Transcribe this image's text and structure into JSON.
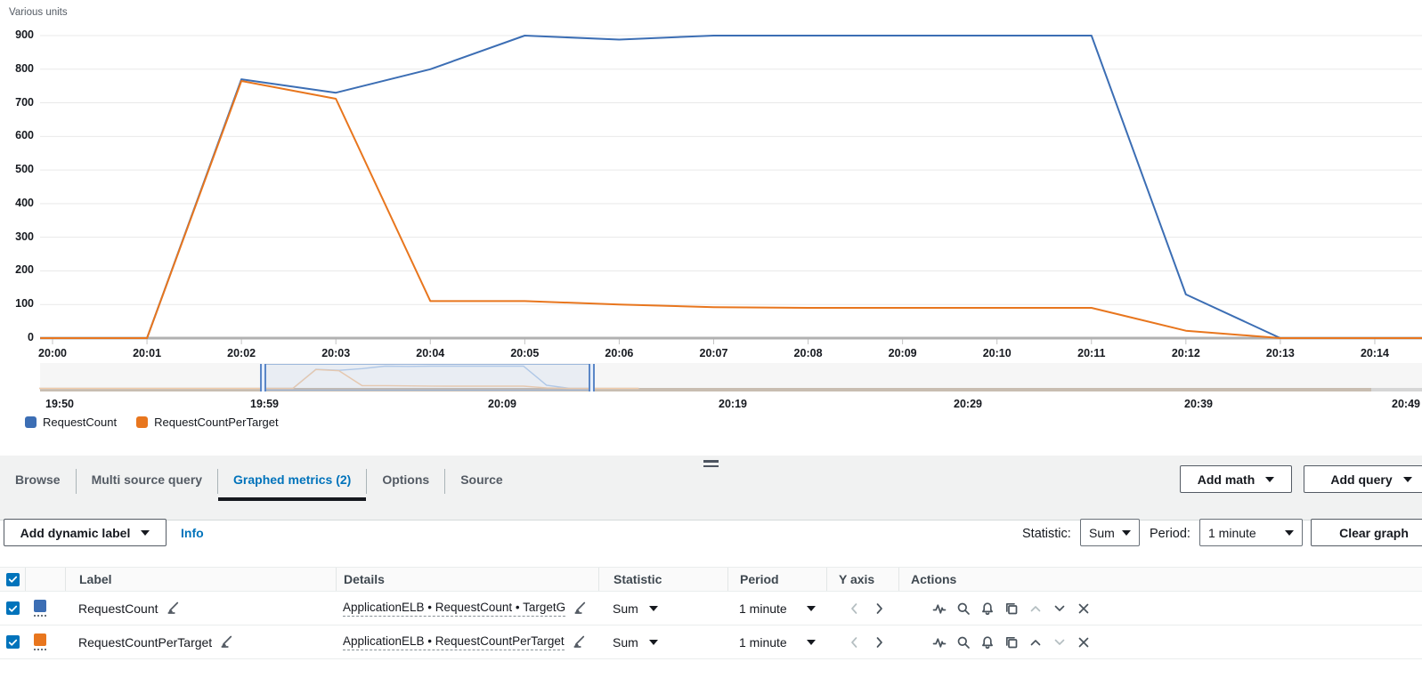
{
  "colors": {
    "blue": "#3C6EB4",
    "orange": "#E8761E",
    "blue_faded": "#b7cde9",
    "orange_faded": "#f2cdab",
    "link": "#0073bb",
    "grid": "#e9e9e9",
    "axis": "#b1b1b1",
    "icon": "#49535c",
    "icon_disabled": "#b4bec1"
  },
  "chart_data": {
    "type": "line",
    "title": "Various units",
    "xlabel": "",
    "ylabel": "Various units",
    "ylim": [
      0,
      900
    ],
    "ytick_step": 100,
    "grid": "horizontal",
    "legend_position": "bottom-left",
    "x": [
      "20:00",
      "20:01",
      "20:02",
      "20:03",
      "20:04",
      "20:05",
      "20:06",
      "20:07",
      "20:08",
      "20:09",
      "20:10",
      "20:11",
      "20:12",
      "20:13",
      "20:14"
    ],
    "series": [
      {
        "name": "RequestCount",
        "color": "#3C6EB4",
        "values": [
          0,
          0,
          770,
          730,
          800,
          900,
          888,
          900,
          900,
          900,
          900,
          900,
          130,
          0,
          0
        ]
      },
      {
        "name": "RequestCountPerTarget",
        "color": "#E8761E",
        "values": [
          0,
          0,
          765,
          712,
          110,
          110,
          100,
          92,
          90,
          90,
          90,
          90,
          22,
          0,
          0
        ]
      }
    ],
    "timeline": {
      "ticks": [
        "19:50",
        "19:59",
        "20:09",
        "20:19",
        "20:29",
        "20:39",
        "20:49"
      ],
      "selection_start": "20:00",
      "selection_end": "20:14"
    }
  },
  "legend": {
    "items": [
      {
        "label": "RequestCount",
        "color": "#3C6EB4"
      },
      {
        "label": "RequestCountPerTarget",
        "color": "#E8761E"
      }
    ]
  },
  "tabs": {
    "items": [
      {
        "label": "Browse",
        "active": false
      },
      {
        "label": "Multi source query",
        "active": false
      },
      {
        "label": "Graphed metrics (2)",
        "active": true
      },
      {
        "label": "Options",
        "active": false
      },
      {
        "label": "Source",
        "active": false
      }
    ],
    "add_math": "Add math",
    "add_query": "Add query"
  },
  "toolbar": {
    "add_dynamic_label": "Add dynamic label",
    "info": "Info",
    "statistic_label": "Statistic:",
    "statistic_value": "Sum",
    "period_label": "Period:",
    "period_value": "1 minute",
    "clear_graph": "Clear graph"
  },
  "table": {
    "headers": [
      "Label",
      "Details",
      "Statistic",
      "Period",
      "Y axis",
      "Actions"
    ],
    "select_all_checked": true,
    "rows": [
      {
        "checked": true,
        "color": "#3C6EB4",
        "label": "RequestCount",
        "details": "ApplicationELB • RequestCount • TargetG",
        "statistic": "Sum",
        "period": "1 minute",
        "move_up_enabled": false,
        "move_down_enabled": true
      },
      {
        "checked": true,
        "color": "#E8761E",
        "label": "RequestCountPerTarget",
        "details": "ApplicationELB • RequestCountPerTarget",
        "statistic": "Sum",
        "period": "1 minute",
        "move_up_enabled": true,
        "move_down_enabled": false
      }
    ]
  }
}
